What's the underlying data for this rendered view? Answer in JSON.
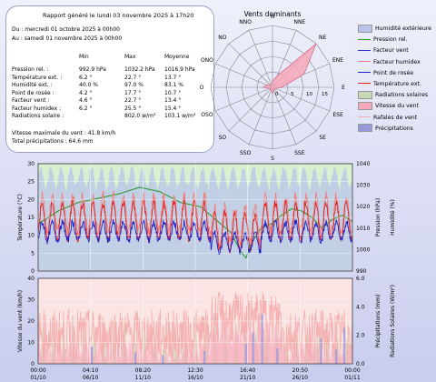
{
  "summary": {
    "title": "Rapport généré le lundi 03 novembre 2025 à 17h20",
    "period_from": "Du : mercredi 01 octobre 2025 à 00h00",
    "period_to": "Au : samedi 01 novembre 2025 à 00h00",
    "col_headers": [
      "Min",
      "Max",
      "Moyenne"
    ],
    "rows": [
      {
        "label": "Pression rel. :",
        "min": "992.9 hPa",
        "max": "1032.2 hPa",
        "avg": "1016.9 hPa"
      },
      {
        "label": "Température ext. :",
        "min": "6.2 °",
        "max": "22.7 °",
        "avg": "13.7 °"
      },
      {
        "label": "Humidité ext. :",
        "min": "40.0 %",
        "max": "97.0 %",
        "avg": "83.1 %"
      },
      {
        "label": "Point de rosée :",
        "min": "4.2 °",
        "max": "17.7 °",
        "avg": "10.7 °"
      },
      {
        "label": "Facteur vent :",
        "min": "4.6 °",
        "max": "22.7 °",
        "avg": "13.4 °"
      },
      {
        "label": "Facteur humidex :",
        "min": "6.2 °",
        "max": "25.5 °",
        "avg": "15.4 °"
      },
      {
        "label": "Radiations solaire :",
        "min": "",
        "max": "802.0 w/m²",
        "avg": "103.1 w/m²"
      }
    ],
    "max_wind": "Vitesse maximale du vent : 41.8 km/h",
    "total_rain": "Total précipitations : 64.6 mm"
  },
  "legend": [
    {
      "label": "Humidité extérieure",
      "color": "#b9c4ec",
      "kind": "area"
    },
    {
      "label": "Pression rel.",
      "color": "#2e9a2e",
      "kind": "line"
    },
    {
      "label": "Facteur vent",
      "color": "#3333cc",
      "kind": "line"
    },
    {
      "label": "Facteur humidex",
      "color": "#f08080",
      "kind": "line"
    },
    {
      "label": "Point de rosée",
      "color": "#2222cc",
      "kind": "line"
    },
    {
      "label": "Température ext.",
      "color": "#e02020",
      "kind": "line"
    },
    {
      "label": "Radiations solaires",
      "color": "#c7d8b4",
      "kind": "area"
    },
    {
      "label": "Vitesse du vent",
      "color": "#f7a8b8",
      "kind": "area"
    },
    {
      "label": "Rafales de vent",
      "color": "#f5b0b0",
      "kind": "line"
    },
    {
      "label": "Précipitations",
      "color": "#9999dd",
      "kind": "area"
    }
  ],
  "chart_data": [
    {
      "type": "radar",
      "title": "Vents dominants",
      "directions": [
        "N",
        "NNE",
        "NE",
        "ENE",
        "E",
        "ESE",
        "SE",
        "SSE",
        "S",
        "SSO",
        "SO",
        "OSO",
        "O",
        "ONO",
        "NO",
        "NNO"
      ],
      "radial_ticks": [
        "0",
        "5",
        "10",
        "15"
      ],
      "rmax": 20,
      "values": [
        2,
        4,
        20,
        11,
        3,
        1,
        1,
        1,
        2,
        1,
        1,
        1,
        3,
        2,
        1,
        1
      ],
      "fill_color": "#f7a8b8"
    },
    {
      "type": "line",
      "x_start": "2025-10-01T00:00",
      "x_ticks": [
        "00:00\n01/10",
        "04:10\n06/10",
        "08:20\n11/10",
        "12:30\n16/10",
        "16:40\n21/10",
        "20:50\n26/10",
        "00:00\n01/11"
      ],
      "x_range_days": [
        0,
        31
      ],
      "ylabel_left": "Température (°C)",
      "ylim_left": [
        0,
        30
      ],
      "yticks_left": [
        0,
        5,
        10,
        15,
        20,
        25,
        30
      ],
      "ylabel_right1": "Pression (hPa)",
      "ylim_right1": [
        990,
        1040
      ],
      "yticks_right1": [
        990,
        1000,
        1010,
        1020,
        1030,
        1040
      ],
      "ylabel_right2": "Humidité (%)",
      "ylim_right2": [
        0,
        100
      ],
      "series": [
        {
          "name": "Humidité extérieure",
          "axis": "right2",
          "kind": "area",
          "base": 88,
          "amp": 10,
          "noise": 4,
          "min": 40,
          "max": 97
        },
        {
          "name": "Pression rel.",
          "axis": "right1",
          "kind": "line",
          "points": [
            [
              0,
              1012
            ],
            [
              2,
              1018
            ],
            [
              4,
              1022
            ],
            [
              6,
              1024
            ],
            [
              8,
              1026
            ],
            [
              10,
              1029
            ],
            [
              12,
              1027
            ],
            [
              14,
              1022
            ],
            [
              16,
              1020
            ],
            [
              17,
              1016
            ],
            [
              18,
              1012
            ],
            [
              19,
              1008
            ],
            [
              20,
              999
            ],
            [
              20.5,
              996
            ],
            [
              21,
              1003
            ],
            [
              22,
              1010
            ],
            [
              23,
              1012
            ],
            [
              24,
              1016
            ],
            [
              25,
              1019
            ],
            [
              26,
              1018
            ],
            [
              27,
              1015
            ],
            [
              28,
              1010
            ],
            [
              29,
              1014
            ],
            [
              30,
              1016
            ],
            [
              31,
              1013
            ]
          ]
        },
        {
          "name": "Facteur humidex",
          "axis": "left",
          "kind": "line",
          "base": 16,
          "amp": 5,
          "noise": 1.5
        },
        {
          "name": "Température ext.",
          "axis": "left",
          "kind": "line",
          "base": 14,
          "amp": 5,
          "noise": 1.2
        },
        {
          "name": "Point de rosée",
          "axis": "left",
          "kind": "line",
          "base": 11,
          "amp": 2.5,
          "noise": 1.0
        }
      ]
    },
    {
      "type": "line",
      "x_ticks": [
        "00:00\n01/10",
        "04:10\n06/10",
        "08:20\n11/10",
        "12:30\n16/10",
        "16:40\n21/10",
        "20:50\n26/10",
        "00:00\n01/11"
      ],
      "x_range_days": [
        0,
        31
      ],
      "ylabel_left": "Vitesse du vent (km/h)",
      "ylim_left": [
        0,
        40
      ],
      "yticks_left": [
        0,
        10,
        20,
        30,
        40
      ],
      "ylabel_right1": "Précipitations (mm)",
      "ylim_right1": [
        0,
        6
      ],
      "yticks_right1": [
        0.0,
        2.0,
        4.0,
        6.0
      ],
      "ylabel_right2": "Radiations Solaires (W/m²)",
      "ylim_right2": [
        0,
        800
      ],
      "series": [
        {
          "name": "Radiations solaires",
          "axis": "right2",
          "kind": "area",
          "peak": 500
        },
        {
          "name": "Rafales de vent",
          "axis": "left",
          "kind": "line",
          "base": 10,
          "noise": 12
        },
        {
          "name": "Vitesse du vent",
          "axis": "left",
          "kind": "area",
          "base": 4,
          "noise": 6
        },
        {
          "name": "Précipitations",
          "axis": "right1",
          "kind": "area",
          "days": [
            [
              5.2,
              1.2
            ],
            [
              9.5,
              0.8
            ],
            [
              12.2,
              0.6
            ],
            [
              16.3,
              0.9
            ],
            [
              20.4,
              1.4
            ],
            [
              21.1,
              2.2
            ],
            [
              22.0,
              3.5
            ],
            [
              23.5,
              1.1
            ],
            [
              27.8,
              1.8
            ],
            [
              29.3,
              1.0
            ],
            [
              30.1,
              2.5
            ]
          ]
        }
      ]
    }
  ]
}
